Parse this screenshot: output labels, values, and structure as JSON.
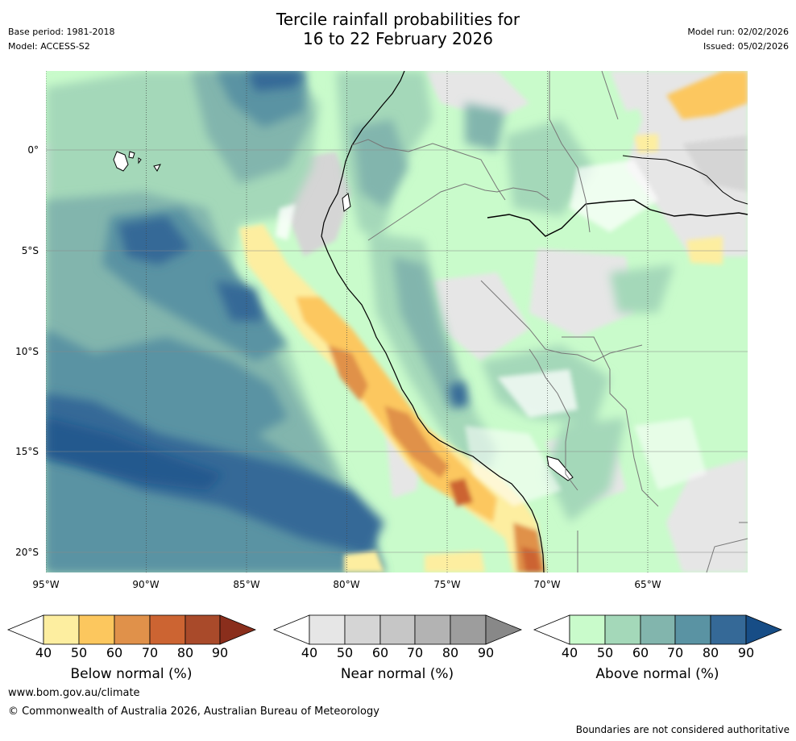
{
  "header": {
    "title_line1": "Tercile rainfall probabilities for",
    "title_line2": "16 to 22 February 2026",
    "base_period": "Base period: 1981-2018",
    "model": "Model: ACCESS-S2",
    "model_run": "Model run: 02/02/2026",
    "issued": "Issued: 05/02/2026"
  },
  "map": {
    "lat_labels": [
      "0°",
      "5°S",
      "10°S",
      "15°S",
      "20°S"
    ],
    "lon_labels": [
      "95°W",
      "90°W",
      "85°W",
      "80°W",
      "75°W",
      "70°W",
      "65°W"
    ]
  },
  "legend": {
    "below": {
      "title": "Below normal (%)",
      "ticks": [
        "40",
        "50",
        "60",
        "70",
        "80",
        "90"
      ],
      "colors": [
        "#fdeea0",
        "#fcc75e",
        "#e0914a",
        "#cc6432",
        "#a94a2a",
        "#8a2e1c"
      ]
    },
    "near": {
      "title": "Near normal (%)",
      "ticks": [
        "40",
        "50",
        "60",
        "70",
        "80",
        "90"
      ],
      "colors": [
        "#e6e6e6",
        "#d5d5d5",
        "#c6c6c6",
        "#b3b3b3",
        "#9d9d9d",
        "#888888"
      ]
    },
    "above": {
      "title": "Above normal (%)",
      "ticks": [
        "40",
        "50",
        "60",
        "70",
        "80",
        "90"
      ],
      "colors": [
        "#c9fbcb",
        "#a4d8b9",
        "#82b5ad",
        "#5a93a3",
        "#356997",
        "#174d86"
      ]
    }
  },
  "footer": {
    "url": "www.bom.gov.au/climate",
    "copyright": "© Commonwealth of Australia 2026, Australian Bureau of Meteorology",
    "disclaimer": "Boundaries are not considered authoritative"
  }
}
